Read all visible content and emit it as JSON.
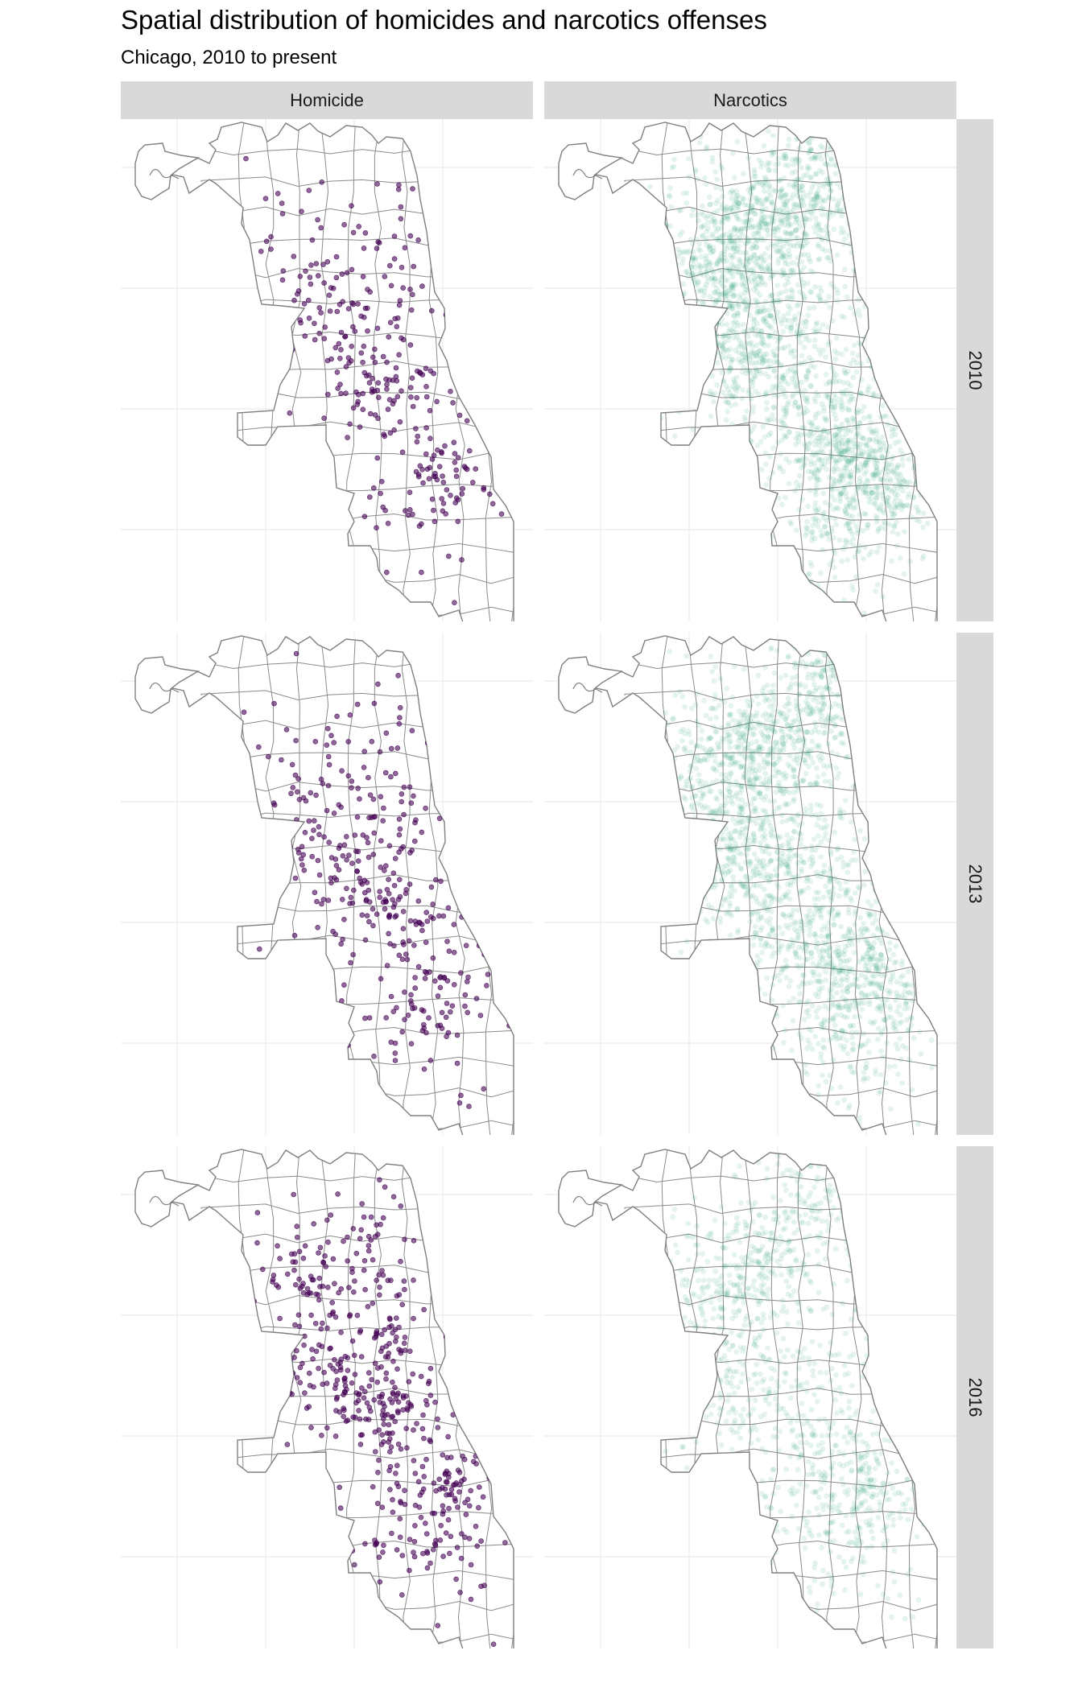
{
  "title": "Spatial distribution of homicides and narcotics offenses",
  "subtitle": "Chicago, 2010 to present",
  "chart_data": {
    "type": "scatter",
    "subtype": "faceted-point-map",
    "facet_columns": [
      "Homicide",
      "Narcotics"
    ],
    "facet_rows": [
      "2010",
      "2013",
      "2016"
    ],
    "series": [
      {
        "name": "Homicide",
        "color": "#440154",
        "point_opacity": 0.6,
        "relative_density": {
          "2010": 0.6,
          "2013": 0.7,
          "2016": 1.0
        }
      },
      {
        "name": "Narcotics",
        "color": "#1f9e77",
        "point_opacity": 0.12,
        "relative_density": {
          "2010": 1.0,
          "2013": 0.85,
          "2016": 0.45
        }
      }
    ],
    "basemap": "Chicago community area boundaries",
    "grid": true,
    "legend": "none"
  }
}
